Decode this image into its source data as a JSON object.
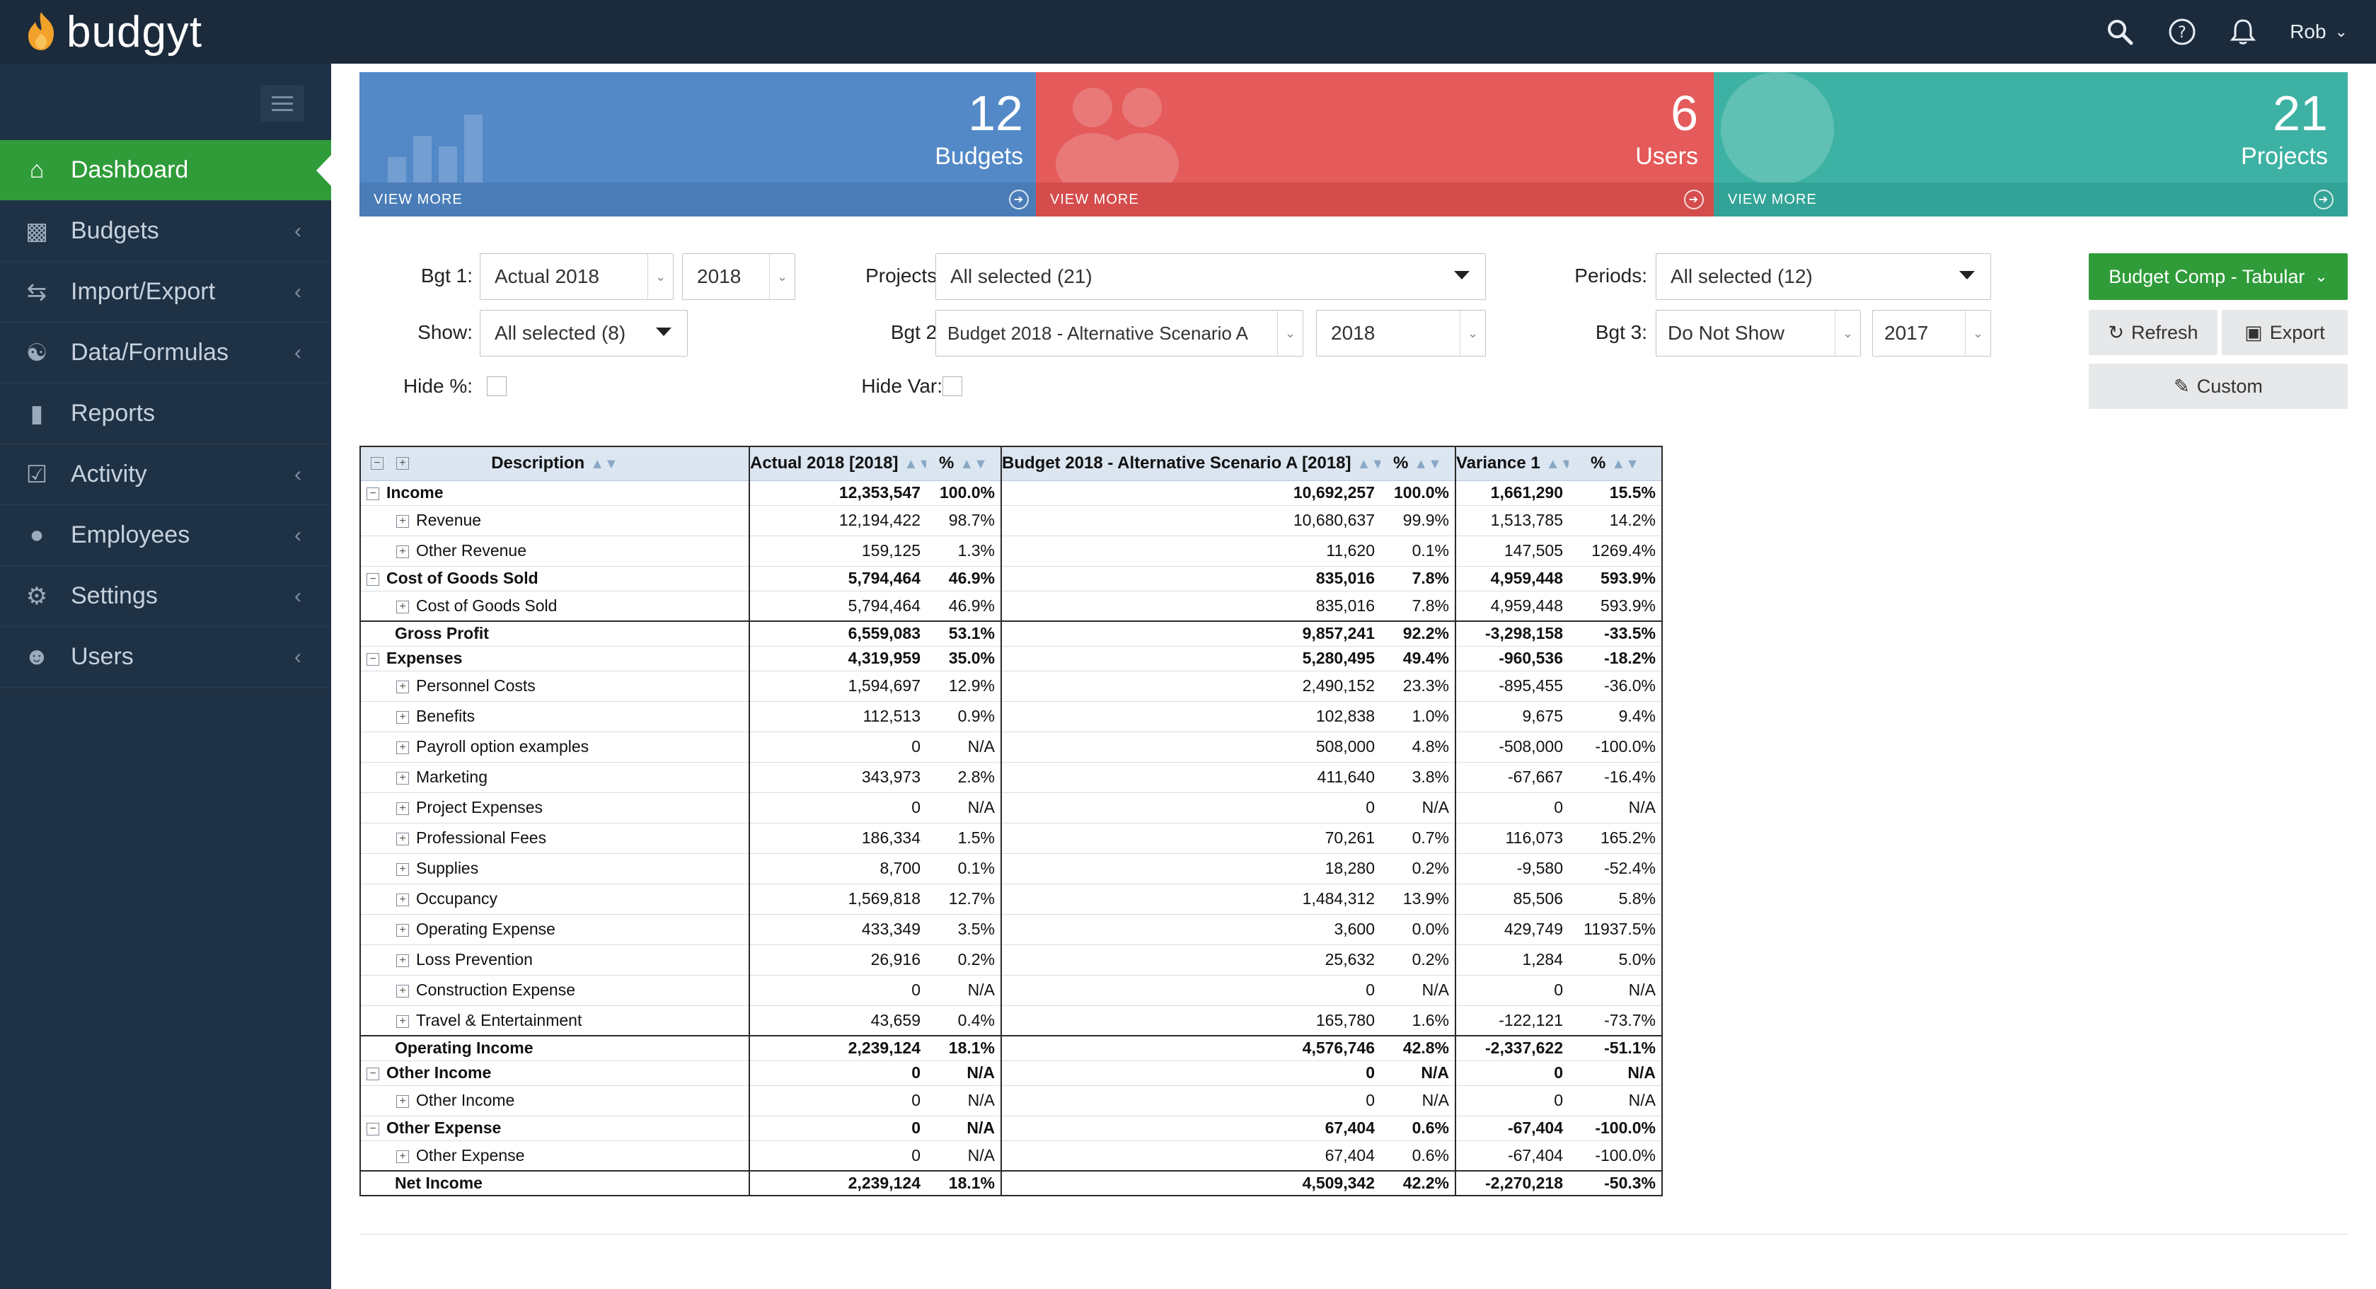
{
  "app": {
    "name": "budgyt",
    "user": "Rob"
  },
  "icons": {
    "logo": "flame-logo-icon",
    "search": "search-icon",
    "help": "help-icon",
    "bell": "bell-icon"
  },
  "colors": {
    "nav_bg": "#1f3144",
    "top_bg": "#1c2b3c",
    "accent_green": "#2f9c39",
    "card_blue": "#5389c7",
    "card_red": "#e55a5a",
    "card_teal": "#3db2a4"
  },
  "sidebar": {
    "items": [
      {
        "label": "Dashboard",
        "icon": "home-icon",
        "active": true
      },
      {
        "label": "Budgets",
        "icon": "bar-chart-icon"
      },
      {
        "label": "Import/Export",
        "icon": "exchange-icon"
      },
      {
        "label": "Data/Formulas",
        "icon": "database-icon"
      },
      {
        "label": "Reports",
        "icon": "file-icon"
      },
      {
        "label": "Activity",
        "icon": "check-square-icon"
      },
      {
        "label": "Employees",
        "icon": "person-icon"
      },
      {
        "label": "Settings",
        "icon": "gear-icon"
      },
      {
        "label": "Users",
        "icon": "user-outline-icon"
      }
    ]
  },
  "cards": [
    {
      "count": "12",
      "label": "Budgets",
      "link": "VIEW MORE"
    },
    {
      "count": "6",
      "label": "Users",
      "link": "VIEW MORE"
    },
    {
      "count": "21",
      "label": "Projects",
      "link": "VIEW MORE"
    }
  ],
  "filters": {
    "bgt1_label": "Bgt 1:",
    "bgt1_value": "Actual 2018",
    "bgt1_year": "2018",
    "projects_label": "Projects:",
    "projects_value": "All selected (21)",
    "periods_label": "Periods:",
    "periods_value": "All selected (12)",
    "show_label": "Show:",
    "show_value": "All selected (8)",
    "bgt2_label": "Bgt 2:",
    "bgt2_value": "Budget 2018 - Alternative Scenario A",
    "bgt2_year": "2018",
    "bgt3_label": "Bgt 3:",
    "bgt3_value": "Do Not Show",
    "bgt3_year": "2017",
    "hide_pct_label": "Hide %:",
    "hide_var_label": "Hide Var:"
  },
  "actions": {
    "report_select": "Budget Comp - Tabular",
    "refresh": "Refresh",
    "export": "Export",
    "custom": "Custom"
  },
  "table": {
    "headers": [
      "Description",
      "Actual 2018 [2018]",
      "%",
      "Budget 2018 - Alternative Scenario A [2018]",
      "%",
      "Variance 1",
      "%"
    ],
    "rows": [
      {
        "type": "head",
        "toggle": "−",
        "desc": "Income",
        "a": "12,353,547",
        "ap": "100.0%",
        "b": "10,692,257",
        "bp": "100.0%",
        "v": "1,661,290",
        "vp": "15.5%"
      },
      {
        "type": "child",
        "toggle": "+",
        "desc": "Revenue",
        "a": "12,194,422",
        "ap": "98.7%",
        "b": "10,680,637",
        "bp": "99.9%",
        "v": "1,513,785",
        "vp": "14.2%"
      },
      {
        "type": "child",
        "toggle": "+",
        "desc": "Other Revenue",
        "a": "159,125",
        "ap": "1.3%",
        "b": "11,620",
        "bp": "0.1%",
        "v": "147,505",
        "vp": "1269.4%"
      },
      {
        "type": "head",
        "toggle": "−",
        "desc": "Cost of Goods Sold",
        "a": "5,794,464",
        "ap": "46.9%",
        "b": "835,016",
        "bp": "7.8%",
        "v": "4,959,448",
        "vp": "593.9%"
      },
      {
        "type": "child",
        "toggle": "+",
        "desc": "Cost of Goods Sold",
        "a": "5,794,464",
        "ap": "46.9%",
        "b": "835,016",
        "bp": "7.8%",
        "v": "4,959,448",
        "vp": "593.9%"
      },
      {
        "type": "total",
        "toggle": "",
        "desc": "Gross Profit",
        "a": "6,559,083",
        "ap": "53.1%",
        "b": "9,857,241",
        "bp": "92.2%",
        "v": "-3,298,158",
        "vp": "-33.5%"
      },
      {
        "type": "head",
        "toggle": "−",
        "desc": "Expenses",
        "a": "4,319,959",
        "ap": "35.0%",
        "b": "5,280,495",
        "bp": "49.4%",
        "v": "-960,536",
        "vp": "-18.2%"
      },
      {
        "type": "child",
        "toggle": "+",
        "desc": "Personnel Costs",
        "a": "1,594,697",
        "ap": "12.9%",
        "b": "2,490,152",
        "bp": "23.3%",
        "v": "-895,455",
        "vp": "-36.0%"
      },
      {
        "type": "child",
        "toggle": "+",
        "desc": "Benefits",
        "a": "112,513",
        "ap": "0.9%",
        "b": "102,838",
        "bp": "1.0%",
        "v": "9,675",
        "vp": "9.4%"
      },
      {
        "type": "child",
        "toggle": "+",
        "desc": "Payroll option examples",
        "a": "0",
        "ap": "N/A",
        "b": "508,000",
        "bp": "4.8%",
        "v": "-508,000",
        "vp": "-100.0%"
      },
      {
        "type": "child",
        "toggle": "+",
        "desc": "Marketing",
        "a": "343,973",
        "ap": "2.8%",
        "b": "411,640",
        "bp": "3.8%",
        "v": "-67,667",
        "vp": "-16.4%"
      },
      {
        "type": "child",
        "toggle": "+",
        "desc": "Project Expenses",
        "a": "0",
        "ap": "N/A",
        "b": "0",
        "bp": "N/A",
        "v": "0",
        "vp": "N/A"
      },
      {
        "type": "child",
        "toggle": "+",
        "desc": "Professional Fees",
        "a": "186,334",
        "ap": "1.5%",
        "b": "70,261",
        "bp": "0.7%",
        "v": "116,073",
        "vp": "165.2%"
      },
      {
        "type": "child",
        "toggle": "+",
        "desc": "Supplies",
        "a": "8,700",
        "ap": "0.1%",
        "b": "18,280",
        "bp": "0.2%",
        "v": "-9,580",
        "vp": "-52.4%"
      },
      {
        "type": "child",
        "toggle": "+",
        "desc": "Occupancy",
        "a": "1,569,818",
        "ap": "12.7%",
        "b": "1,484,312",
        "bp": "13.9%",
        "v": "85,506",
        "vp": "5.8%"
      },
      {
        "type": "child",
        "toggle": "+",
        "desc": "Operating Expense",
        "a": "433,349",
        "ap": "3.5%",
        "b": "3,600",
        "bp": "0.0%",
        "v": "429,749",
        "vp": "11937.5%"
      },
      {
        "type": "child",
        "toggle": "+",
        "desc": "Loss Prevention",
        "a": "26,916",
        "ap": "0.2%",
        "b": "25,632",
        "bp": "0.2%",
        "v": "1,284",
        "vp": "5.0%"
      },
      {
        "type": "child",
        "toggle": "+",
        "desc": "Construction Expense",
        "a": "0",
        "ap": "N/A",
        "b": "0",
        "bp": "N/A",
        "v": "0",
        "vp": "N/A"
      },
      {
        "type": "child",
        "toggle": "+",
        "desc": "Travel & Entertainment",
        "a": "43,659",
        "ap": "0.4%",
        "b": "165,780",
        "bp": "1.6%",
        "v": "-122,121",
        "vp": "-73.7%"
      },
      {
        "type": "total",
        "toggle": "",
        "desc": "Operating Income",
        "a": "2,239,124",
        "ap": "18.1%",
        "b": "4,576,746",
        "bp": "42.8%",
        "v": "-2,337,622",
        "vp": "-51.1%"
      },
      {
        "type": "head",
        "toggle": "−",
        "desc": "Other Income",
        "a": "0",
        "ap": "N/A",
        "b": "0",
        "bp": "N/A",
        "v": "0",
        "vp": "N/A"
      },
      {
        "type": "child",
        "toggle": "+",
        "desc": "Other Income",
        "a": "0",
        "ap": "N/A",
        "b": "0",
        "bp": "N/A",
        "v": "0",
        "vp": "N/A"
      },
      {
        "type": "head",
        "toggle": "−",
        "desc": "Other Expense",
        "a": "0",
        "ap": "N/A",
        "b": "67,404",
        "bp": "0.6%",
        "v": "-67,404",
        "vp": "-100.0%"
      },
      {
        "type": "child",
        "toggle": "+",
        "desc": "Other Expense",
        "a": "0",
        "ap": "N/A",
        "b": "67,404",
        "bp": "0.6%",
        "v": "-67,404",
        "vp": "-100.0%"
      },
      {
        "type": "total",
        "toggle": "",
        "desc": "Net Income",
        "a": "2,239,124",
        "ap": "18.1%",
        "b": "4,509,342",
        "bp": "42.2%",
        "v": "-2,270,218",
        "vp": "-50.3%"
      }
    ]
  }
}
